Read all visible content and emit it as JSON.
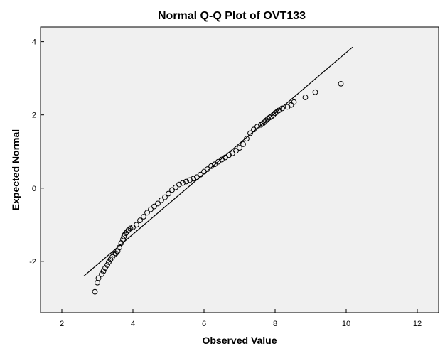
{
  "chart_data": {
    "type": "scatter",
    "title": "Normal Q-Q Plot of OVT133",
    "xlabel": "Observed Value",
    "ylabel": "Expected Normal",
    "xlim": [
      1.4,
      12.6
    ],
    "ylim": [
      -3.4,
      4.4
    ],
    "x_ticks": [
      2,
      4,
      6,
      8,
      10,
      12
    ],
    "y_ticks": [
      -2,
      0,
      2,
      4
    ],
    "x_tick_labels": [
      "2",
      "4",
      "6",
      "8",
      "10",
      "12"
    ],
    "y_tick_labels": [
      "-2",
      "0",
      "2",
      "4"
    ],
    "grid": false,
    "legend": "none",
    "colors": {
      "plot_background": "#f0f0f0",
      "marker_stroke": "#000000",
      "line": "#000000"
    },
    "reference_line": {
      "x": [
        2.62,
        10.18
      ],
      "y": [
        -2.4,
        3.85
      ]
    },
    "points": {
      "x": [
        2.93,
        3.0,
        3.03,
        3.12,
        3.17,
        3.22,
        3.28,
        3.32,
        3.37,
        3.42,
        3.47,
        3.52,
        3.57,
        3.62,
        3.67,
        3.72,
        3.75,
        3.77,
        3.8,
        3.83,
        3.87,
        3.93,
        4.0,
        4.1,
        4.2,
        4.3,
        4.4,
        4.5,
        4.6,
        4.7,
        4.8,
        4.9,
        5.0,
        5.1,
        5.2,
        5.3,
        5.4,
        5.5,
        5.6,
        5.7,
        5.8,
        5.9,
        6.0,
        6.1,
        6.2,
        6.3,
        6.4,
        6.5,
        6.6,
        6.7,
        6.8,
        6.9,
        7.0,
        7.1,
        7.2,
        7.3,
        7.4,
        7.5,
        7.6,
        7.65,
        7.7,
        7.75,
        7.8,
        7.85,
        7.9,
        7.95,
        8.0,
        8.05,
        8.1,
        8.2,
        8.35,
        8.45,
        8.53,
        8.85,
        9.13,
        9.85
      ],
      "y": [
        -2.83,
        -2.58,
        -2.46,
        -2.35,
        -2.27,
        -2.18,
        -2.1,
        -2.02,
        -1.95,
        -1.88,
        -1.82,
        -1.78,
        -1.72,
        -1.62,
        -1.5,
        -1.4,
        -1.32,
        -1.27,
        -1.23,
        -1.2,
        -1.15,
        -1.1,
        -1.07,
        -1.0,
        -0.88,
        -0.78,
        -0.67,
        -0.58,
        -0.5,
        -0.42,
        -0.33,
        -0.25,
        -0.15,
        -0.05,
        0.02,
        0.1,
        0.14,
        0.18,
        0.22,
        0.26,
        0.3,
        0.37,
        0.45,
        0.52,
        0.6,
        0.65,
        0.72,
        0.78,
        0.84,
        0.9,
        0.95,
        1.02,
        1.1,
        1.2,
        1.35,
        1.5,
        1.6,
        1.68,
        1.73,
        1.76,
        1.8,
        1.85,
        1.9,
        1.93,
        1.96,
        2.0,
        2.05,
        2.08,
        2.12,
        2.18,
        2.22,
        2.27,
        2.35,
        2.48,
        2.62,
        2.85
      ]
    }
  }
}
